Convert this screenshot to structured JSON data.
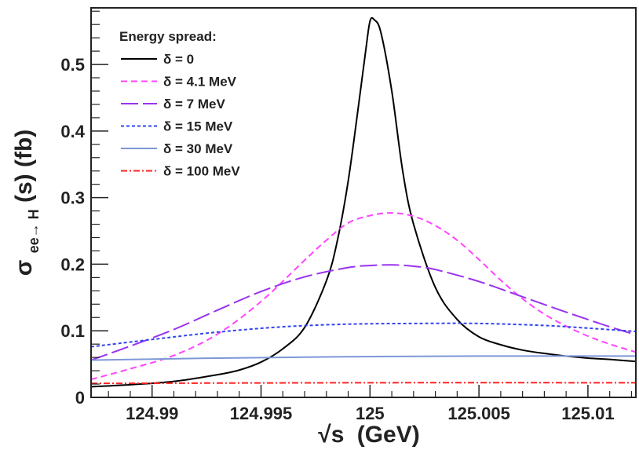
{
  "chart_data": {
    "type": "line",
    "xlabel_prefix": "√s",
    "xlabel_unit": "(GeV)",
    "ylabel_sigma": "σ",
    "ylabel_sub": "ee→ H",
    "ylabel_rest": "(s) (fb)",
    "xlim": [
      124.9872,
      125.0122
    ],
    "ylim": [
      0,
      0.585
    ],
    "x_ticks": [
      {
        "value": 124.99,
        "label": "124.99"
      },
      {
        "value": 124.995,
        "label": "124.995"
      },
      {
        "value": 125,
        "label": "125"
      },
      {
        "value": 125.005,
        "label": "125.005"
      },
      {
        "value": 125.01,
        "label": "125.01"
      }
    ],
    "y_ticks": [
      {
        "value": 0,
        "label": "0"
      },
      {
        "value": 0.1,
        "label": "0.1"
      },
      {
        "value": 0.2,
        "label": "0.2"
      },
      {
        "value": 0.3,
        "label": "0.3"
      },
      {
        "value": 0.4,
        "label": "0.4"
      },
      {
        "value": 0.5,
        "label": "0.5"
      }
    ],
    "legend_title": "Energy spread:",
    "legend_position": "top-left",
    "series": [
      {
        "name": "δ = 0",
        "color": "#000000",
        "dash": "",
        "width": 2,
        "x": [
          124.9872,
          124.989,
          124.991,
          124.993,
          124.994,
          124.995,
          124.996,
          124.997,
          124.998,
          124.9985,
          124.999,
          124.9995,
          124.9998,
          125.0,
          125.0002,
          125.0005,
          125.001,
          125.0015,
          125.002,
          125.003,
          125.004,
          125.005,
          125.006,
          125.007,
          125.008,
          125.009,
          125.01,
          125.011,
          125.0122
        ],
        "values": [
          0.016,
          0.019,
          0.024,
          0.034,
          0.041,
          0.053,
          0.073,
          0.105,
          0.175,
          0.235,
          0.325,
          0.445,
          0.52,
          0.565,
          0.567,
          0.548,
          0.46,
          0.34,
          0.26,
          0.165,
          0.117,
          0.091,
          0.079,
          0.071,
          0.066,
          0.062,
          0.059,
          0.057,
          0.054
        ]
      },
      {
        "name": "δ = 4.1 MeV",
        "color": "#ff44ff",
        "dash": "8,5",
        "width": 2,
        "x": [
          124.9872,
          124.989,
          124.991,
          124.993,
          124.995,
          124.997,
          124.998,
          124.999,
          125.0,
          125.001,
          125.002,
          125.003,
          125.004,
          125.005,
          125.006,
          125.007,
          125.008,
          125.009,
          125.01,
          125.011,
          125.0122
        ],
        "values": [
          0.027,
          0.043,
          0.063,
          0.095,
          0.144,
          0.206,
          0.236,
          0.262,
          0.273,
          0.277,
          0.272,
          0.258,
          0.236,
          0.207,
          0.176,
          0.148,
          0.125,
          0.107,
          0.092,
          0.08,
          0.068
        ]
      },
      {
        "name": "δ = 7 MeV",
        "color": "#9933ee",
        "dash": "22,6",
        "width": 2,
        "x": [
          124.9872,
          124.989,
          124.991,
          124.993,
          124.995,
          124.997,
          124.999,
          125.0,
          125.001,
          125.002,
          125.003,
          125.005,
          125.007,
          125.009,
          125.01,
          125.011,
          125.0122
        ],
        "values": [
          0.056,
          0.077,
          0.102,
          0.131,
          0.159,
          0.181,
          0.195,
          0.198,
          0.199,
          0.197,
          0.192,
          0.174,
          0.151,
          0.128,
          0.117,
          0.106,
          0.094
        ]
      },
      {
        "name": "δ = 15 MeV",
        "color": "#3344ee",
        "dash": "4,3",
        "width": 2,
        "x": [
          124.9872,
          124.99,
          124.993,
          124.996,
          124.999,
          125.002,
          125.005,
          125.008,
          125.01,
          125.0122
        ],
        "values": [
          0.076,
          0.087,
          0.098,
          0.106,
          0.11,
          0.111,
          0.111,
          0.108,
          0.104,
          0.099
        ]
      },
      {
        "name": "δ = 30 MeV",
        "color": "#7d97d8",
        "dash": "",
        "width": 2,
        "x": [
          124.9872,
          124.993,
          124.999,
          125.005,
          125.0122
        ],
        "values": [
          0.056,
          0.059,
          0.061,
          0.062,
          0.062
        ]
      },
      {
        "name": "δ = 100 MeV",
        "color": "#ff2222",
        "dash": "8,3,2,3",
        "width": 2,
        "x": [
          124.9872,
          125.0,
          125.0122
        ],
        "values": [
          0.021,
          0.022,
          0.022
        ]
      }
    ]
  }
}
